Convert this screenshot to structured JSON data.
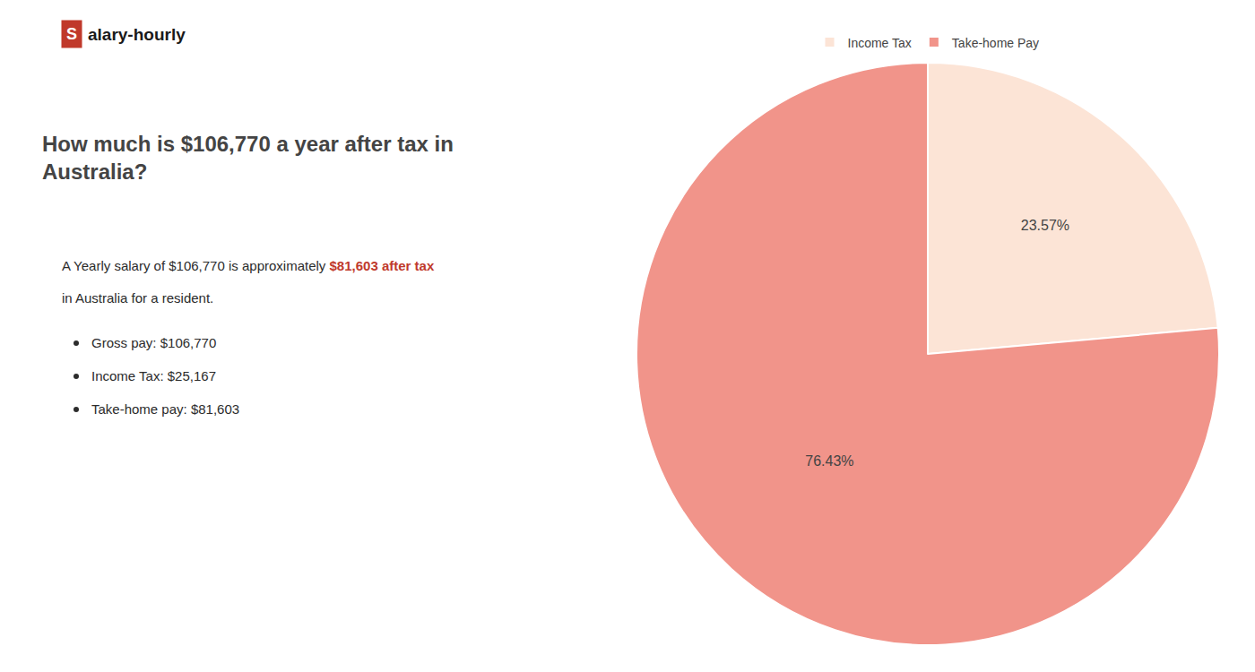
{
  "chart_data": {
    "type": "pie",
    "title": "How much is $106,770 a year after tax in\nAustralia?",
    "categories": [
      "Income Tax",
      "Take-home Pay"
    ],
    "values": [
      23.57,
      76.43
    ],
    "value_labels": [
      "23.57%",
      "76.43%"
    ],
    "colors": [
      "#fce4d6",
      "#f1948a"
    ],
    "data_labels": true,
    "legend": "top",
    "annotations": [
      {
        "text": "S",
        "color": "#c0392b"
      },
      {
        "text": "alary-hourly",
        "color": "#1a1a1a"
      },
      {
        "text": "A Yearly salary of $106,770 is approximately ",
        "color": "#2c2c2c"
      },
      {
        "text": "$81,603 after tax",
        "color": "#c0392b"
      },
      {
        "text": "in Australia for a resident.",
        "color": "#2c2c2c"
      },
      {
        "text": "Gross pay: $106,770",
        "color": "#2c2c2c"
      },
      {
        "text": "Income Tax: $25,167",
        "color": "#2c2c2c"
      },
      {
        "text": "Take-home pay: $81,603",
        "color": "#2c2c2c"
      }
    ]
  }
}
